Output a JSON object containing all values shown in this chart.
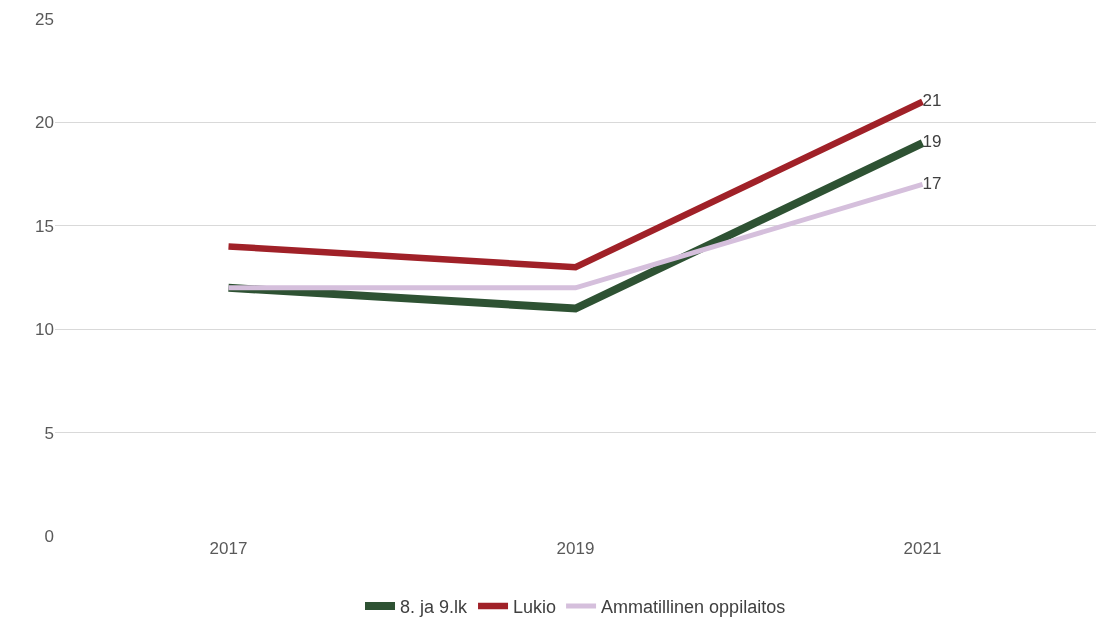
{
  "chart_data": {
    "type": "line",
    "categories": [
      "2017",
      "2019",
      "2021"
    ],
    "series": [
      {
        "name": "8. ja 9.lk",
        "color": "#2e5233",
        "values": [
          12,
          11,
          19
        ],
        "value_labels": [
          null,
          null,
          "19"
        ]
      },
      {
        "name": "Lukio",
        "color": "#a02128",
        "values": [
          14,
          13,
          21
        ],
        "value_labels": [
          null,
          null,
          "21"
        ]
      },
      {
        "name": "Ammatillinen oppilaitos",
        "color": "#d5bfdc",
        "values": [
          12,
          12,
          17
        ],
        "value_labels": [
          null,
          null,
          "17"
        ]
      }
    ],
    "ylim": [
      0,
      25
    ],
    "yticks": [
      0,
      5,
      10,
      15,
      20,
      25
    ],
    "grid": "y",
    "legend": "bottom",
    "line_style": "solid"
  }
}
